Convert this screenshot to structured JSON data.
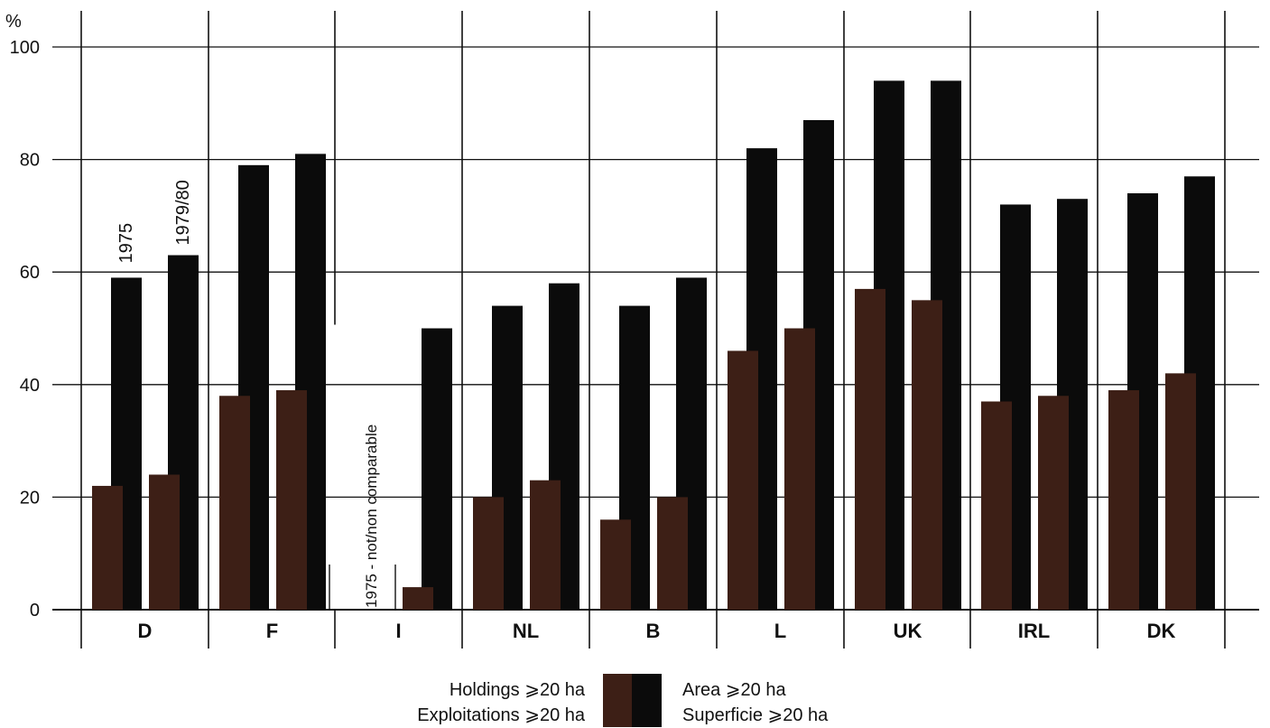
{
  "chart_data": {
    "type": "bar",
    "y_unit": "%",
    "ylim": [
      0,
      100
    ],
    "yticks": [
      "0",
      "20",
      "40",
      "60",
      "80",
      "100"
    ],
    "categories": [
      "D",
      "F",
      "I",
      "NL",
      "B",
      "L",
      "UK",
      "IRL",
      "DK"
    ],
    "periods": [
      "1975",
      "1979/80"
    ],
    "grid": true,
    "legend_placement": "bottom-center",
    "series": [
      {
        "key": "holdings",
        "name_line1": "Holdings ⩾20 ha",
        "name_line2": "Exploitations ⩾20 ha",
        "color": "#3d1f16",
        "values_1975": [
          22,
          38,
          null,
          20,
          16,
          46,
          57,
          37,
          39
        ],
        "values_1979_80": [
          24,
          39,
          4,
          23,
          20,
          50,
          55,
          38,
          42
        ]
      },
      {
        "key": "area",
        "name_line1": "Area ⩾20 ha",
        "name_line2": "Superficie ⩾20 ha",
        "color": "#0b0b0b",
        "values_1975": [
          59,
          79,
          null,
          54,
          54,
          82,
          94,
          72,
          74
        ],
        "values_1979_80": [
          63,
          81,
          50,
          58,
          59,
          87,
          94,
          73,
          77
        ]
      }
    ],
    "annotations": {
      "period_label_1975": "1975",
      "period_label_1979_80": "1979/80",
      "italy_note": "1975 - not/non comparable"
    }
  }
}
